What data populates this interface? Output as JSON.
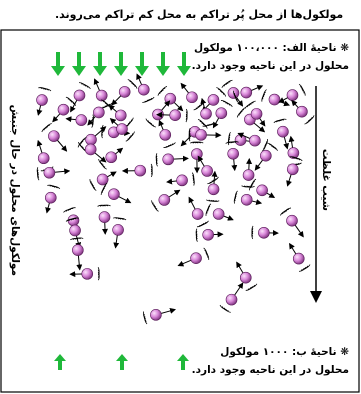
{
  "header": {
    "title": "مولکول‌ها از محل پُر تراکم به محل کم تراکم می‌روند."
  },
  "regions": [
    {
      "label": "❋ ناحیهٔ الف: ۱۰۰،۰۰۰ مولکول",
      "text": "محلول در این ناحیه وجود دارد."
    },
    {
      "label": "❋ ناحیهٔ ب: ۱۰۰۰ مولکول",
      "text": "محلول در این ناحیه وجود دارد."
    }
  ],
  "side_labels": {
    "left": "مولکول‌های محلول در حال جنبش",
    "right": "شیب غلظت"
  }
}
